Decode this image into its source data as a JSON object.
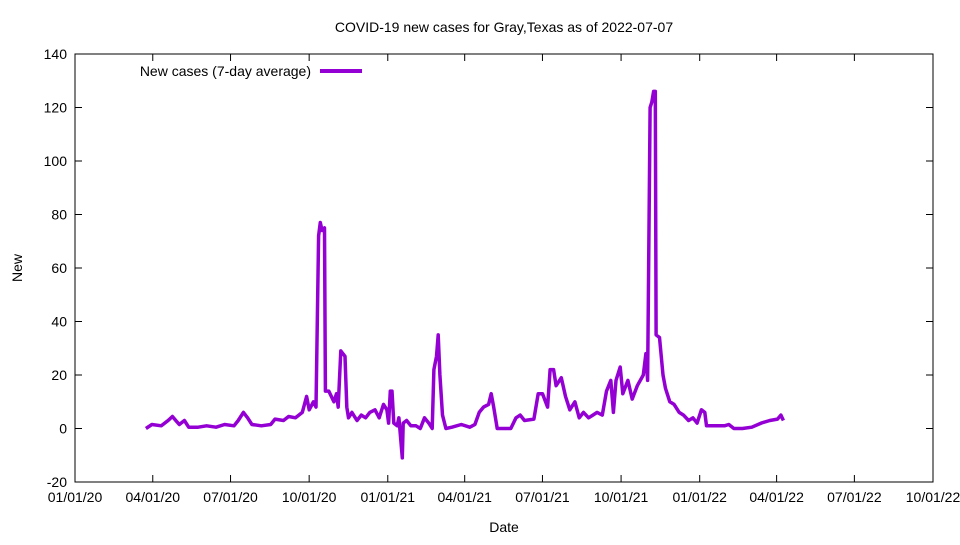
{
  "chart_data": {
    "type": "line",
    "title": "COVID-19 new cases for Gray,Texas as of 2022-07-07",
    "xlabel": "Date",
    "ylabel": "New",
    "x_unit": "days since 2020-01-01",
    "xlim": [
      0,
      1004
    ],
    "ylim": [
      -20,
      140
    ],
    "yticks": [
      -20,
      0,
      20,
      40,
      60,
      80,
      100,
      120,
      140
    ],
    "xticks": [
      {
        "day": 0,
        "label": "01/01/20"
      },
      {
        "day": 91,
        "label": "04/01/20"
      },
      {
        "day": 182,
        "label": "07/01/20"
      },
      {
        "day": 274,
        "label": "10/01/20"
      },
      {
        "day": 366,
        "label": "01/01/21"
      },
      {
        "day": 456,
        "label": "04/01/21"
      },
      {
        "day": 547,
        "label": "07/01/21"
      },
      {
        "day": 639,
        "label": "10/01/21"
      },
      {
        "day": 731,
        "label": "01/01/22"
      },
      {
        "day": 821,
        "label": "04/01/22"
      },
      {
        "day": 912,
        "label": "07/01/22"
      },
      {
        "day": 1004,
        "label": "10/01/22"
      }
    ],
    "legend_position": "top-left",
    "grid": false,
    "series": [
      {
        "name": "New cases (7-day average)",
        "color": "#9400d3",
        "x": [
          83,
          90,
          101,
          109,
          114,
          118,
          122,
          128,
          133,
          144,
          154,
          165,
          175,
          186,
          191,
          197,
          202,
          207,
          218,
          229,
          234,
          244,
          250,
          258,
          266,
          271,
          274,
          279,
          282,
          285,
          287,
          289,
          292,
          293,
          297,
          303,
          306,
          308,
          311,
          316,
          318,
          320,
          324,
          330,
          335,
          340,
          345,
          351,
          356,
          361,
          365,
          367,
          369,
          371,
          373,
          377,
          379,
          383,
          384,
          388,
          393,
          399,
          404,
          409,
          414,
          418,
          420,
          423,
          425,
          427,
          430,
          434,
          441,
          452,
          462,
          468,
          473,
          478,
          484,
          487,
          490,
          494,
          505,
          510,
          516,
          521,
          526,
          537,
          542,
          547,
          553,
          556,
          560,
          563,
          569,
          574,
          579,
          585,
          590,
          595,
          601,
          606,
          611,
          617,
          622,
          627,
          630,
          633,
          638,
          641,
          647,
          652,
          658,
          665,
          668,
          670,
          673,
          675,
          677,
          679,
          680,
          684,
          688,
          691,
          696,
          701,
          707,
          712,
          718,
          723,
          728,
          733,
          737,
          739,
          750,
          760,
          765,
          771,
          781,
          792,
          803,
          813,
          822,
          826,
          829
        ],
        "y": [
          0,
          1.5,
          1,
          3,
          4.5,
          3,
          1.5,
          3,
          0.5,
          0.5,
          1,
          0.5,
          1.5,
          1,
          3,
          6,
          4,
          1.5,
          1,
          1.5,
          3.5,
          3,
          4.5,
          4,
          6,
          12,
          7,
          10,
          8,
          72,
          77,
          74,
          75,
          14,
          14,
          10,
          13,
          8,
          29,
          27,
          8,
          4,
          6,
          3,
          5,
          4,
          6,
          7,
          4,
          9,
          7,
          2,
          14,
          14,
          2,
          1,
          4,
          -11,
          2,
          3,
          1,
          1,
          0,
          4,
          2,
          0,
          22,
          27,
          35,
          20,
          5,
          0,
          0.5,
          1.5,
          0.5,
          1.5,
          6,
          8,
          9,
          13,
          8,
          0,
          0,
          0,
          4,
          5,
          3,
          3.5,
          13,
          13,
          8,
          22,
          22,
          16,
          19,
          12,
          7,
          10,
          4,
          6,
          4,
          5,
          6,
          5,
          14,
          18,
          6,
          18,
          23,
          13,
          18,
          11,
          16,
          20,
          28,
          18,
          120,
          122,
          126,
          126,
          35,
          34,
          20,
          15,
          10,
          9,
          6,
          5,
          3,
          4,
          2,
          7,
          6,
          1,
          1,
          1,
          1.5,
          0,
          0,
          0.5,
          2,
          3,
          3.5,
          5,
          3
        ]
      }
    ]
  }
}
